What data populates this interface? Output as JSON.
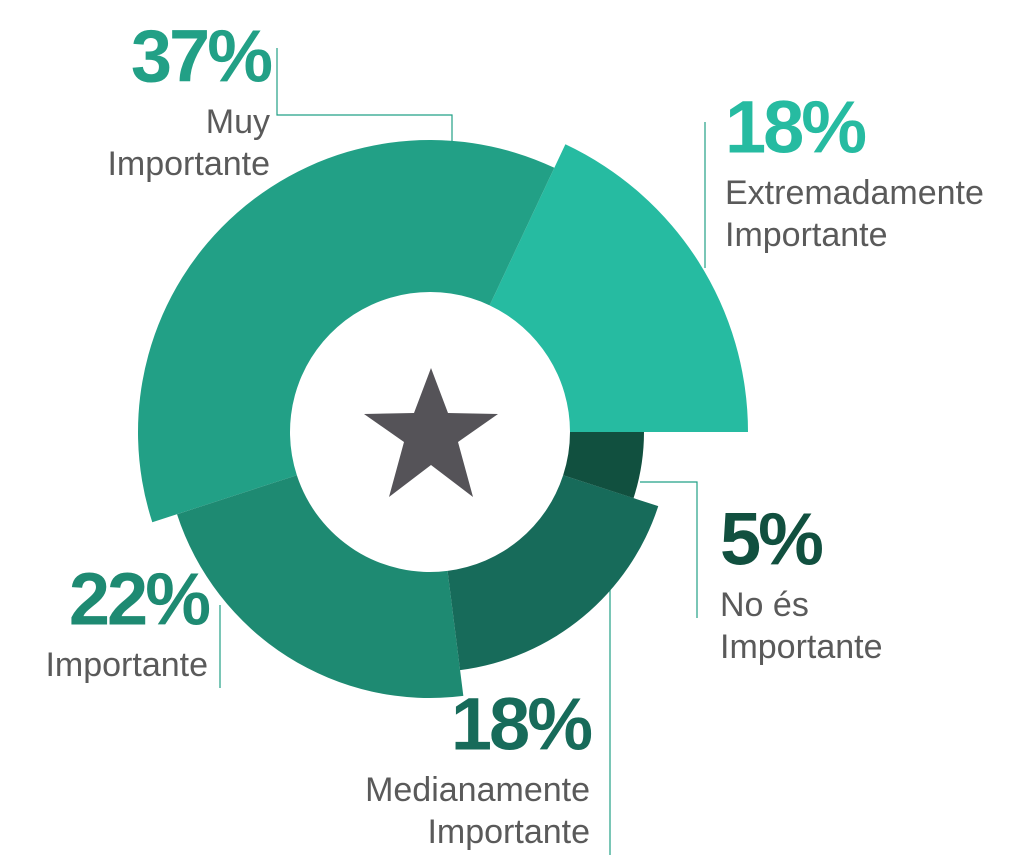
{
  "chart_data": {
    "type": "donut",
    "categories": [
      "Extremadamente Importante",
      "Muy Importante",
      "Importante",
      "Medianamente Importante",
      "No és Importante"
    ],
    "values": [
      18,
      37,
      22,
      18,
      5
    ],
    "value_labels": [
      "18%",
      "37%",
      "22%",
      "18%",
      "5%"
    ],
    "colors": [
      "#26bba1",
      "#22a086",
      "#1e8a72",
      "#176b5a",
      "#11503f"
    ]
  }
}
